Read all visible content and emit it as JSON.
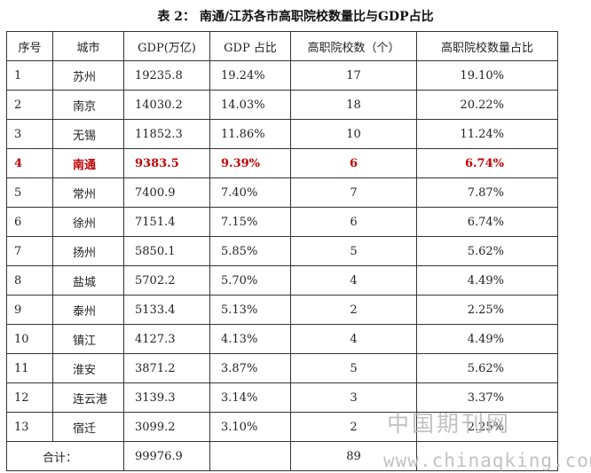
{
  "caption": "表 2：  南通/江苏各市高职院校数量比与GDP占比",
  "headers": [
    "序号",
    "城市",
    "GDP(万亿)",
    "GDP 占比",
    "高职院校数（个）",
    "高职院校数量占比"
  ],
  "rows": [
    {
      "idx": "1",
      "city": "苏州",
      "gdp": "19235.8",
      "share": "19.24%",
      "count": "17",
      "ratio": "19.10%"
    },
    {
      "idx": "2",
      "city": "南京",
      "gdp": "14030.2",
      "share": "14.03%",
      "count": "18",
      "ratio": "20.22%"
    },
    {
      "idx": "3",
      "city": "无锡",
      "gdp": "11852.3",
      "share": "11.86%",
      "count": "10",
      "ratio": "11.24%"
    },
    {
      "idx": "4",
      "city": "南通",
      "gdp": "9383.5",
      "share": "9.39%",
      "count": "6",
      "ratio": "6.74%"
    },
    {
      "idx": "5",
      "city": "常州",
      "gdp": "7400.9",
      "share": "7.40%",
      "count": "7",
      "ratio": "7.87%"
    },
    {
      "idx": "6",
      "city": "徐州",
      "gdp": "7151.4",
      "share": "7.15%",
      "count": "6",
      "ratio": "6.74%"
    },
    {
      "idx": "7",
      "city": "扬州",
      "gdp": "5850.1",
      "share": "5.85%",
      "count": "5",
      "ratio": "5.62%"
    },
    {
      "idx": "8",
      "city": "盐城",
      "gdp": "5702.2",
      "share": "5.70%",
      "count": "4",
      "ratio": "4.49%"
    },
    {
      "idx": "9",
      "city": "泰州",
      "gdp": "5133.4",
      "share": "5.13%",
      "count": "2",
      "ratio": "2.25%"
    },
    {
      "idx": "10",
      "city": "镇江",
      "gdp": "4127.3",
      "share": "4.13%",
      "count": "4",
      "ratio": "4.49%"
    },
    {
      "idx": "11",
      "city": "淮安",
      "gdp": "3871.2",
      "share": "3.87%",
      "count": "5",
      "ratio": "5.62%"
    },
    {
      "idx": "12",
      "city": "连云港",
      "gdp": "3139.3",
      "share": "3.14%",
      "count": "3",
      "ratio": "3.37%"
    },
    {
      "idx": "13",
      "city": "宿迁",
      "gdp": "3099.2",
      "share": "3.10%",
      "count": "2",
      "ratio": "2.25%"
    }
  ],
  "highlight_row_index": 3,
  "highlight_color": "#c00000",
  "total": {
    "label": "合计：",
    "gdp": "99976.9",
    "count": "89"
  },
  "watermark": {
    "line1": "中国期刊网",
    "line2": "www.chinaqking.com"
  }
}
